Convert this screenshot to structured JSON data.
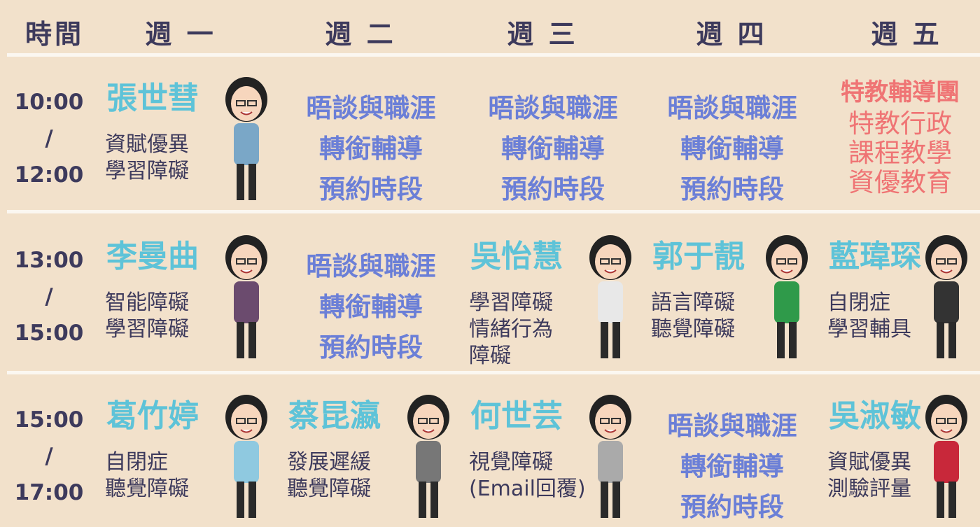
{
  "header": [
    "時間",
    "週 一",
    "週 二",
    "週 三",
    "週 四",
    "週 五"
  ],
  "rows": [
    {
      "time": [
        "10:00",
        "/",
        "12:00"
      ],
      "cells": [
        {
          "name": "張世彗",
          "specialties": [
            "資賦優異",
            "學習障礙"
          ]
        },
        {
          "lines": [
            "晤談與職涯",
            "轉銜輔導",
            "預約時段"
          ],
          "color": "#6b7fd7"
        },
        {
          "lines": [
            "晤談與職涯",
            "轉銜輔導",
            "預約時段"
          ],
          "color": "#6b7fd7"
        },
        {
          "lines": [
            "晤談與職涯",
            "轉銜輔導",
            "預約時段"
          ],
          "color": "#6b7fd7"
        },
        {
          "lines": [
            "特教輔導團",
            "特教行政",
            "課程教學",
            "資優教育"
          ],
          "color": "#ef7474"
        }
      ]
    },
    {
      "time": [
        "13:00",
        "/",
        "15:00"
      ],
      "cells": [
        {
          "name": "李曼曲",
          "specialties": [
            "智能障礙",
            "學習障礙"
          ]
        },
        {
          "lines": [
            "晤談與職涯",
            "轉銜輔導",
            "預約時段"
          ],
          "color": "#6b7fd7"
        },
        {
          "name": "吳怡慧",
          "specialties": [
            "學習障礙",
            "情緒行為",
            "障礙"
          ]
        },
        {
          "name": "郭于靚",
          "specialties": [
            "語言障礙",
            "聽覺障礙"
          ]
        },
        {
          "name": "藍瑋琛",
          "specialties": [
            "自閉症",
            "學習輔具"
          ]
        }
      ]
    },
    {
      "time": [
        "15:00",
        "/",
        "17:00"
      ],
      "cells": [
        {
          "name": "葛竹婷",
          "specialties": [
            "自閉症",
            "聽覺障礙"
          ]
        },
        {
          "name": "蔡昆瀛",
          "specialties": [
            "發展遲緩",
            "聽覺障礙"
          ]
        },
        {
          "name": "何世芸",
          "specialties": [
            "視覺障礙",
            "(Email回覆)"
          ]
        },
        {
          "lines": [
            "晤談與職涯",
            "轉銜輔導",
            "預約時段"
          ],
          "color": "#6b7fd7"
        },
        {
          "name": "吳淑敏",
          "specialties": [
            "資賦優異",
            "測驗評量"
          ]
        }
      ]
    }
  ]
}
